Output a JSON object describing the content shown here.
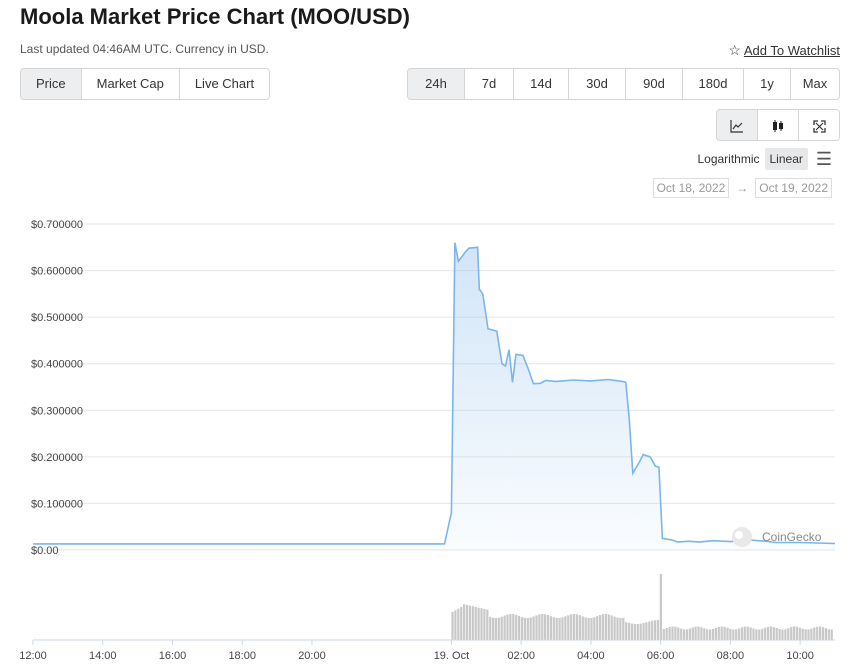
{
  "header": {
    "title": "Moola Market Price Chart (MOO/USD)",
    "subtitle": "Last updated 04:46AM UTC. Currency in USD.",
    "watchlist_label": "Add To Watchlist"
  },
  "tabs": [
    {
      "label": "Price",
      "active": true
    },
    {
      "label": "Market Cap",
      "active": false
    },
    {
      "label": "Live Chart",
      "active": false
    }
  ],
  "ranges": [
    {
      "label": "24h",
      "active": true
    },
    {
      "label": "7d",
      "active": false
    },
    {
      "label": "14d",
      "active": false
    },
    {
      "label": "30d",
      "active": false
    },
    {
      "label": "90d",
      "active": false
    },
    {
      "label": "180d",
      "active": false
    },
    {
      "label": "1y",
      "active": false
    },
    {
      "label": "Max",
      "active": false
    }
  ],
  "chart_types": [
    {
      "icon": "line-chart-icon",
      "active": true
    },
    {
      "icon": "candlestick-icon",
      "active": false
    },
    {
      "icon": "fullscreen-icon",
      "active": false
    }
  ],
  "scale": {
    "logarithmic": "Logarithmic",
    "linear": "Linear",
    "active": "linear"
  },
  "date_range": {
    "from": "Oct 18, 2022",
    "to": "Oct 19, 2022",
    "arrow": "→"
  },
  "watermark": "CoinGecko",
  "colors": {
    "line": "#7cb5ec",
    "volume": "#c8c8c8",
    "grid": "#e6e6e6"
  },
  "chart_data": {
    "type": "line",
    "y_ticks": [
      "$0.00",
      "$0.100000",
      "$0.200000",
      "$0.300000",
      "$0.400000",
      "$0.500000",
      "$0.600000",
      "$0.700000"
    ],
    "x_ticks": [
      "12:00",
      "14:00",
      "16:00",
      "18:00",
      "20:00",
      "19. Oct",
      "02:00",
      "04:00",
      "06:00",
      "08:00",
      "10:00"
    ],
    "ylim": [
      0,
      0.7
    ],
    "x_unit": "hours since 12:00 Oct 18",
    "series": [
      {
        "values": [
          [
            0,
            0.013
          ],
          [
            5,
            0.013
          ],
          [
            10,
            0.013
          ],
          [
            11.8,
            0.013
          ],
          [
            12.0,
            0.08
          ],
          [
            12.1,
            0.66
          ],
          [
            12.2,
            0.62
          ],
          [
            12.4,
            0.64
          ],
          [
            12.5,
            0.648
          ],
          [
            12.75,
            0.65
          ],
          [
            12.8,
            0.56
          ],
          [
            12.9,
            0.55
          ],
          [
            13.05,
            0.475
          ],
          [
            13.3,
            0.47
          ],
          [
            13.45,
            0.4
          ],
          [
            13.55,
            0.395
          ],
          [
            13.65,
            0.43
          ],
          [
            13.75,
            0.36
          ],
          [
            13.85,
            0.42
          ],
          [
            14.05,
            0.418
          ],
          [
            14.2,
            0.39
          ],
          [
            14.35,
            0.357
          ],
          [
            14.55,
            0.358
          ],
          [
            14.7,
            0.364
          ],
          [
            15.0,
            0.362
          ],
          [
            15.5,
            0.365
          ],
          [
            16.0,
            0.363
          ],
          [
            16.5,
            0.366
          ],
          [
            16.9,
            0.362
          ],
          [
            17.0,
            0.36
          ],
          [
            17.1,
            0.28
          ],
          [
            17.2,
            0.165
          ],
          [
            17.4,
            0.19
          ],
          [
            17.5,
            0.205
          ],
          [
            17.7,
            0.2
          ],
          [
            17.85,
            0.18
          ],
          [
            17.95,
            0.178
          ],
          [
            18.05,
            0.025
          ],
          [
            18.3,
            0.022
          ],
          [
            18.5,
            0.017
          ],
          [
            18.8,
            0.019
          ],
          [
            19.1,
            0.017
          ],
          [
            19.5,
            0.02
          ],
          [
            20.0,
            0.018
          ],
          [
            20.5,
            0.022
          ],
          [
            21.0,
            0.019
          ],
          [
            21.3,
            0.016
          ],
          [
            22.0,
            0.016
          ],
          [
            23.0,
            0.014
          ]
        ]
      }
    ],
    "volume_note": "volume bars shown beneath price"
  }
}
